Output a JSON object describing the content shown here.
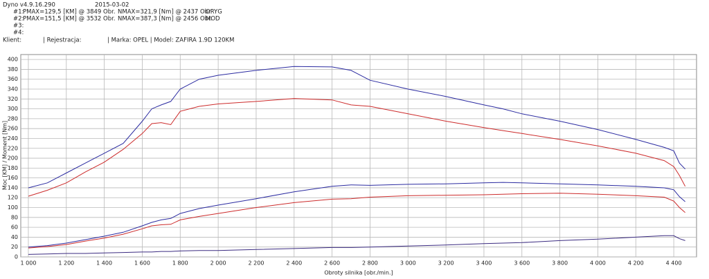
{
  "header": {
    "version": "Dyno v4.9.16.290",
    "date": "2015-03-02",
    "runs": [
      {
        "id": "#1:",
        "pmax": "PMAX=129,5 [KM] @ 3849 Obr.",
        "nmax": "NMAX=321,9 [Nm] @ 2437 Obr.",
        "label": "ORYG"
      },
      {
        "id": "#2:",
        "pmax": "PMAX=151,5 [KM] @ 3532 Obr.",
        "nmax": "NMAX=387,3 [Nm] @ 2456 Obr.",
        "label": "MOD"
      },
      {
        "id": "#3:"
      },
      {
        "id": "#4:"
      }
    ],
    "client": "Klient:",
    "registration": "| Rejestracja:",
    "vehicle": "| Marka: OPEL | Model: ZAFIRA 1.9D 120KM"
  },
  "chart_data": {
    "type": "line",
    "x_label": "Obroty silnika [obr./min.]",
    "y_label": "Moc [KM] / Moment [Nm]",
    "x": [
      1000,
      1100,
      1200,
      1300,
      1400,
      1500,
      1600,
      1650,
      1700,
      1750,
      1800,
      1900,
      2000,
      2200,
      2400,
      2600,
      2700,
      2800,
      3000,
      3200,
      3400,
      3500,
      3600,
      3800,
      4000,
      4200,
      4350,
      4400,
      4430,
      4460
    ],
    "series": [
      {
        "color": "#2a2aa0",
        "values": [
          140,
          150,
          170,
          190,
          210,
          230,
          275,
          300,
          308,
          315,
          340,
          360,
          368,
          378,
          386,
          385,
          378,
          358,
          340,
          325,
          308,
          300,
          290,
          275,
          258,
          238,
          222,
          215,
          190,
          178
        ]
      },
      {
        "color": "#cc2a2a",
        "values": [
          123,
          135,
          150,
          172,
          192,
          218,
          250,
          270,
          272,
          268,
          295,
          305,
          310,
          315,
          321,
          318,
          308,
          305,
          290,
          275,
          262,
          256,
          250,
          238,
          225,
          210,
          195,
          183,
          165,
          143
        ]
      },
      {
        "color": "#2a2aa0",
        "values": [
          20,
          23,
          28,
          35,
          42,
          50,
          63,
          70,
          75,
          78,
          88,
          98,
          105,
          118,
          132,
          143,
          146,
          145,
          147,
          148,
          150,
          151,
          150,
          148,
          146,
          143,
          140,
          136,
          122,
          112
        ]
      },
      {
        "color": "#cc2a2a",
        "values": [
          18,
          21,
          25,
          32,
          38,
          46,
          57,
          63,
          65,
          66,
          75,
          82,
          88,
          100,
          110,
          117,
          118,
          121,
          124,
          125,
          126,
          127,
          128,
          129,
          127,
          124,
          121,
          113,
          100,
          90
        ]
      },
      {
        "color": "#3a2a80",
        "values": [
          5,
          6,
          7,
          7,
          8,
          9,
          10,
          10,
          11,
          11,
          12,
          13,
          13,
          15,
          17,
          19,
          19,
          20,
          22,
          24,
          27,
          28,
          29,
          33,
          36,
          40,
          43,
          43,
          37,
          33
        ]
      }
    ],
    "xlim": [
      960,
      4520
    ],
    "ylim": [
      0,
      410
    ],
    "xticks": [
      {
        "value": 1000,
        "label": "1 000"
      },
      {
        "value": 1200,
        "label": "1 200"
      },
      {
        "value": 1400,
        "label": "1 400"
      },
      {
        "value": 1600,
        "label": "1 600"
      },
      {
        "value": 1800,
        "label": "1 800"
      },
      {
        "value": 2000,
        "label": "2 000"
      },
      {
        "value": 2200,
        "label": "2 200"
      },
      {
        "value": 2400,
        "label": "2 400"
      },
      {
        "value": 2600,
        "label": "2 600"
      },
      {
        "value": 2800,
        "label": "2 800"
      },
      {
        "value": 3000,
        "label": "3 000"
      },
      {
        "value": 3200,
        "label": "3 200"
      },
      {
        "value": 3400,
        "label": "3 400"
      },
      {
        "value": 3600,
        "label": "3 600"
      },
      {
        "value": 3800,
        "label": "3 800"
      },
      {
        "value": 4000,
        "label": "4 000"
      },
      {
        "value": 4200,
        "label": "4 200"
      },
      {
        "value": 4400,
        "label": "4 400"
      }
    ],
    "yticks": [
      0,
      20,
      40,
      60,
      80,
      100,
      120,
      140,
      160,
      180,
      200,
      220,
      240,
      260,
      280,
      300,
      320,
      340,
      360,
      380,
      400
    ],
    "grid": true
  }
}
